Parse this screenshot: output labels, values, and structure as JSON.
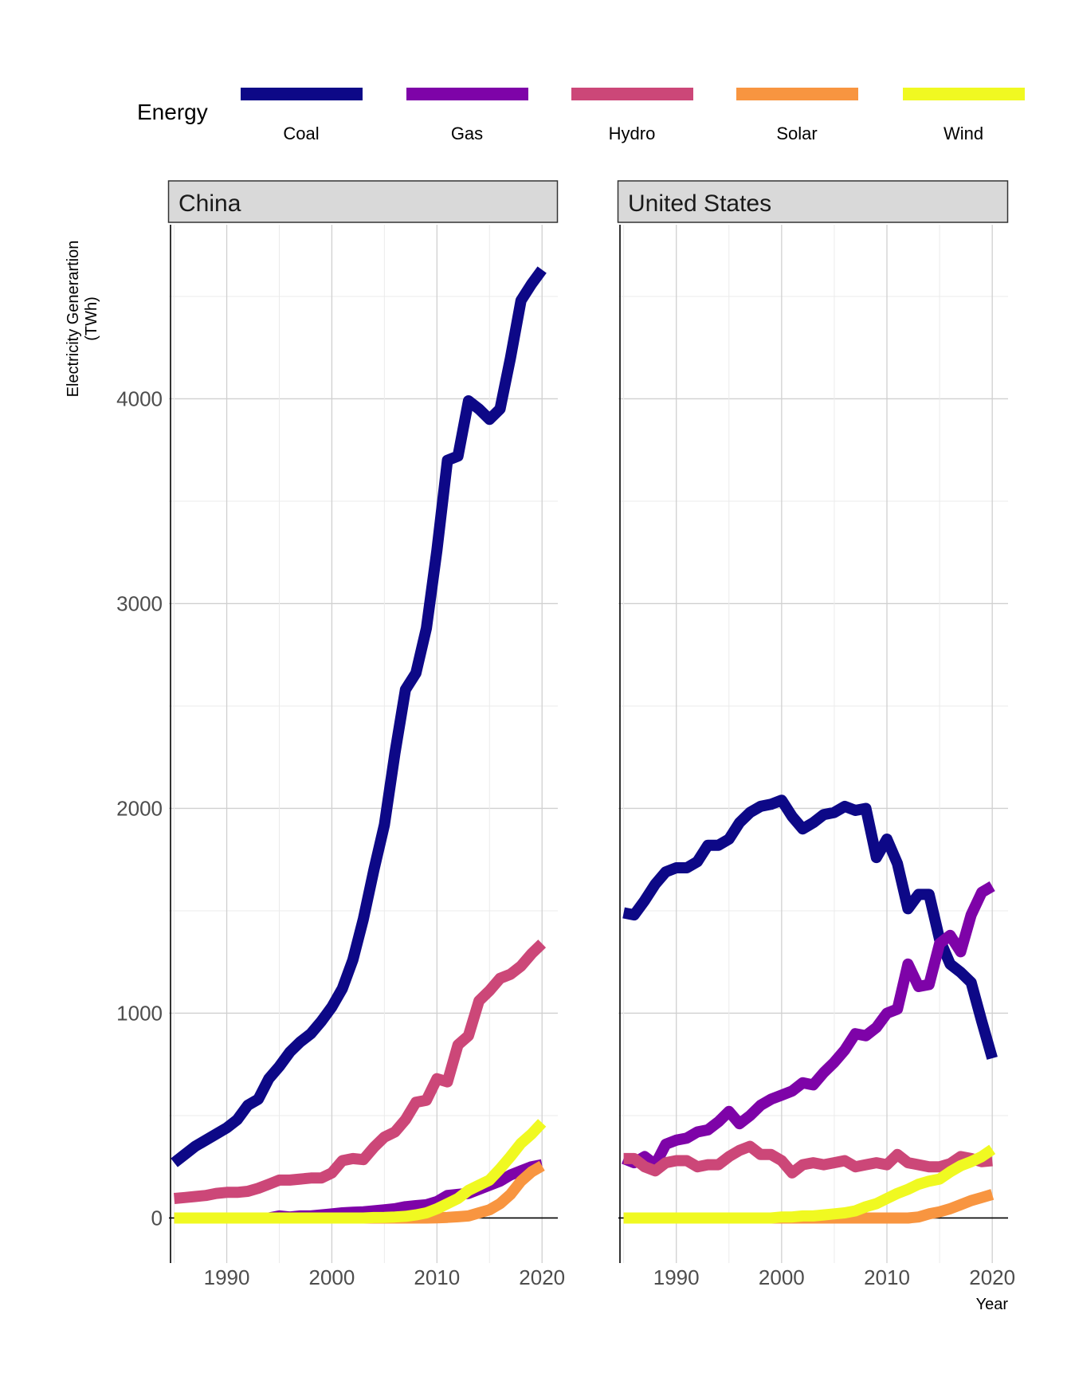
{
  "chart_data": {
    "type": "line",
    "legend": {
      "title": "Energy",
      "position": "top"
    },
    "ylabel": "Electricity Generartion\n(TWh)",
    "xlabel": "Year",
    "xlim": [
      1984.5,
      2021.5
    ],
    "ylim": [
      -220,
      4850
    ],
    "x_ticks": [
      1990,
      2000,
      2010,
      2020
    ],
    "y_ticks": [
      0,
      1000,
      2000,
      3000,
      4000
    ],
    "colors": {
      "Coal": "#0d0887",
      "Gas": "#7e03a8",
      "Hydro": "#cc4778",
      "Solar": "#f89540",
      "Wind": "#f0f921"
    },
    "years": [
      1985,
      1986,
      1987,
      1988,
      1989,
      1990,
      1991,
      1992,
      1993,
      1994,
      1995,
      1996,
      1997,
      1998,
      1999,
      2000,
      2001,
      2002,
      2003,
      2004,
      2005,
      2006,
      2007,
      2008,
      2009,
      2010,
      2011,
      2012,
      2013,
      2014,
      2015,
      2016,
      2017,
      2018,
      2019,
      2020
    ],
    "panels": [
      {
        "name": "China",
        "series": [
          {
            "name": "Coal",
            "values": [
              270,
              310,
              350,
              380,
              410,
              440,
              480,
              550,
              580,
              680,
              740,
              810,
              860,
              900,
              960,
              1030,
              1120,
              1260,
              1460,
              1700,
              1920,
              2270,
              2580,
              2660,
              2880,
              3260,
              3700,
              3720,
              3990,
              3950,
              3900,
              3950,
              4200,
              4480,
              4560,
              4630
            ]
          },
          {
            "name": "Gas",
            "values": [
              0,
              0,
              0,
              0,
              0,
              0,
              0,
              0,
              0,
              0,
              10,
              5,
              10,
              10,
              15,
              20,
              25,
              28,
              30,
              35,
              40,
              45,
              55,
              60,
              65,
              80,
              110,
              115,
              120,
              140,
              160,
              180,
              210,
              230,
              250,
              260
            ]
          },
          {
            "name": "Hydro",
            "values": [
              95,
              100,
              105,
              110,
              120,
              125,
              125,
              130,
              145,
              165,
              185,
              185,
              190,
              195,
              195,
              220,
              280,
              290,
              285,
              345,
              395,
              420,
              480,
              565,
              575,
              680,
              665,
              845,
              890,
              1060,
              1110,
              1170,
              1190,
              1230,
              1290,
              1340
            ]
          },
          {
            "name": "Solar",
            "values": [
              0,
              0,
              0,
              0,
              0,
              0,
              0,
              0,
              0,
              0,
              0,
              0,
              0,
              0,
              0,
              0,
              0,
              0,
              0,
              0,
              0,
              0,
              0,
              0,
              0,
              1,
              3,
              6,
              10,
              25,
              40,
              70,
              115,
              180,
              225,
              255
            ]
          },
          {
            "name": "Wind",
            "values": [
              0,
              0,
              0,
              0,
              0,
              0,
              0,
              0,
              0,
              0,
              0,
              0,
              0,
              0,
              0,
              0,
              0,
              0,
              0,
              2,
              3,
              5,
              8,
              15,
              25,
              45,
              70,
              95,
              135,
              160,
              185,
              240,
              300,
              365,
              410,
              465
            ]
          }
        ]
      },
      {
        "name": "United States",
        "series": [
          {
            "name": "Coal",
            "values": [
              1490,
              1480,
              1550,
              1630,
              1690,
              1710,
              1710,
              1740,
              1820,
              1820,
              1850,
              1930,
              1980,
              2010,
              2020,
              2040,
              1960,
              1900,
              1930,
              1970,
              1980,
              2010,
              1990,
              2000,
              1760,
              1850,
              1730,
              1510,
              1580,
              1580,
              1360,
              1240,
              1200,
              1150,
              960,
              780
            ]
          },
          {
            "name": "Gas",
            "values": [
              290,
              270,
              300,
              260,
              360,
              380,
              390,
              420,
              430,
              470,
              520,
              460,
              500,
              550,
              580,
              600,
              620,
              660,
              650,
              710,
              760,
              820,
              900,
              890,
              930,
              1000,
              1020,
              1240,
              1130,
              1140,
              1340,
              1380,
              1300,
              1480,
              1590,
              1620
            ]
          },
          {
            "name": "Hydro",
            "values": [
              290,
              290,
              250,
              230,
              270,
              280,
              280,
              250,
              260,
              260,
              300,
              330,
              350,
              310,
              310,
              280,
              220,
              260,
              270,
              260,
              270,
              280,
              250,
              260,
              270,
              260,
              310,
              270,
              260,
              250,
              250,
              265,
              300,
              290,
              275,
              280
            ]
          },
          {
            "name": "Solar",
            "values": [
              0,
              0,
              0,
              0,
              0,
              0,
              0,
              0,
              0,
              0,
              0,
              0,
              0,
              0,
              0,
              0,
              0,
              0,
              0,
              0,
              0,
              0,
              0,
              0,
              0,
              0,
              0,
              0,
              5,
              20,
              30,
              45,
              65,
              85,
              100,
              115
            ]
          },
          {
            "name": "Wind",
            "values": [
              0,
              0,
              0,
              0,
              0,
              0,
              0,
              0,
              0,
              0,
              0,
              0,
              0,
              0,
              0,
              5,
              5,
              10,
              10,
              15,
              20,
              25,
              35,
              55,
              70,
              95,
              120,
              140,
              165,
              180,
              190,
              225,
              255,
              275,
              300,
              335
            ]
          }
        ]
      }
    ]
  }
}
